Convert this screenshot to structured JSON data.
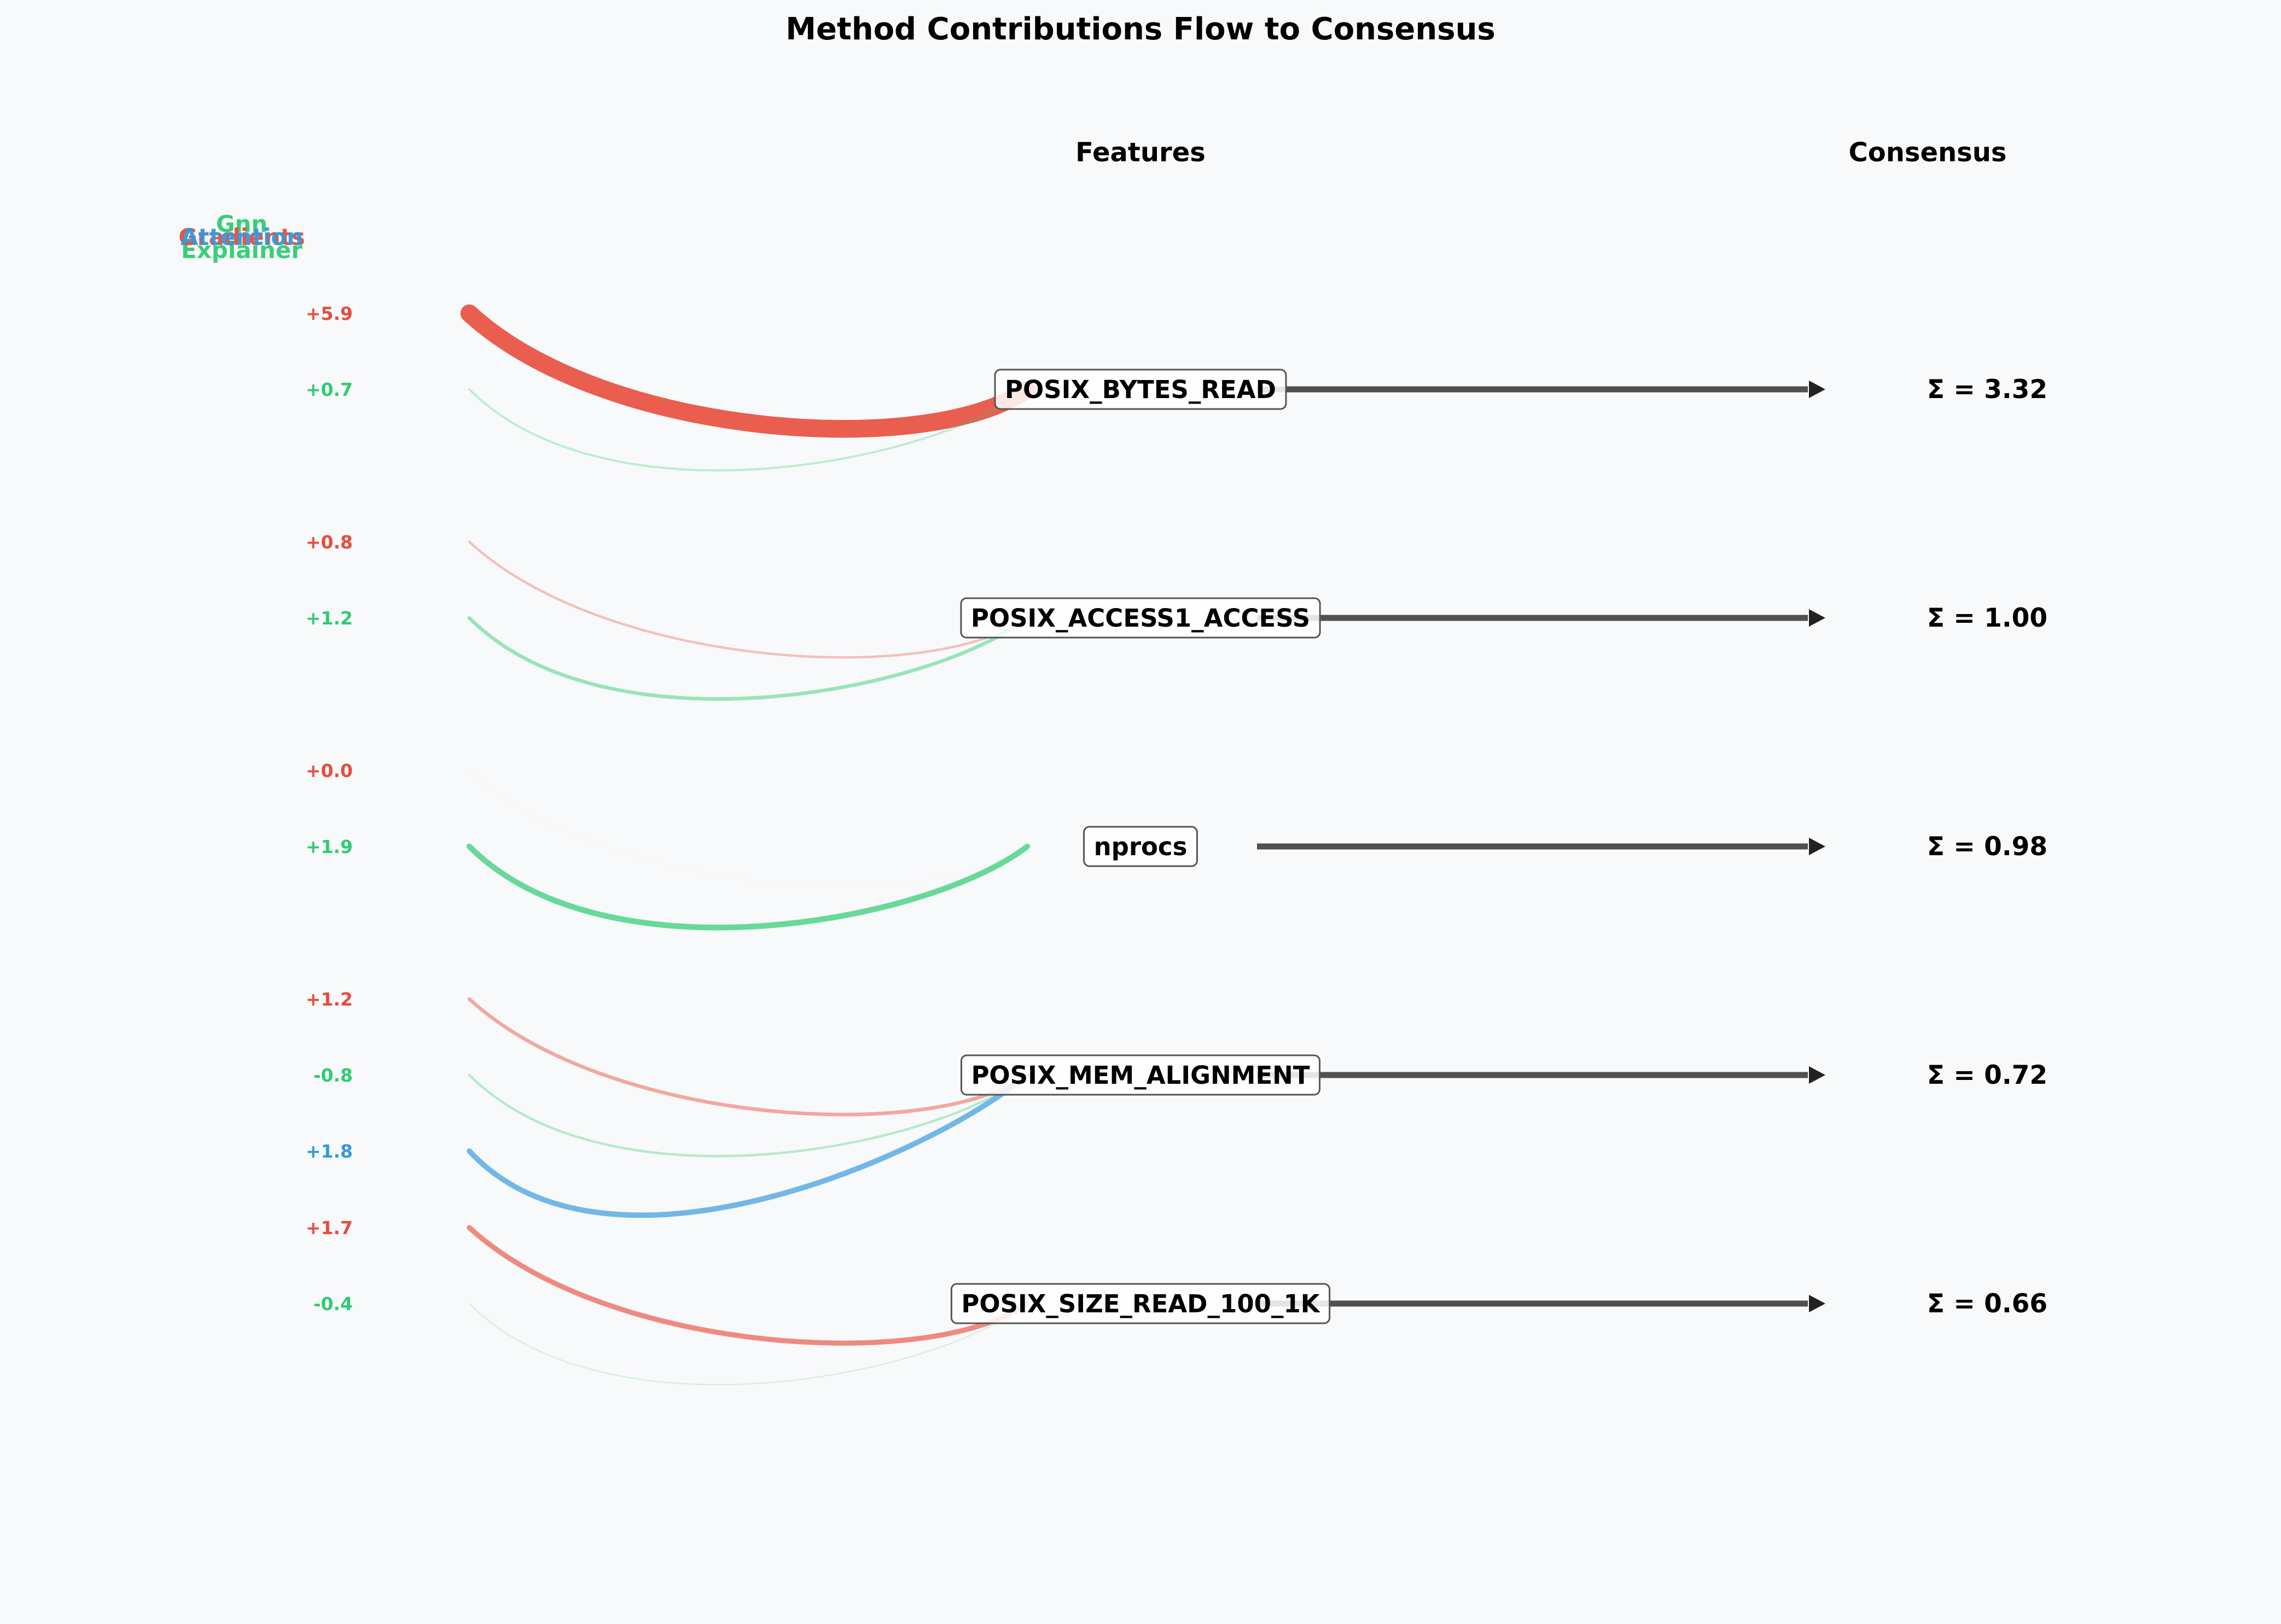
{
  "chart_data": {
    "type": "flow",
    "title": "Method Contributions Flow to Consensus",
    "column_headers": {
      "features": "Features",
      "consensus": "Consensus"
    },
    "methods": [
      {
        "name": "Gnn\nExplainer",
        "color": "#2ecc71"
      },
      {
        "name": "Gradients",
        "color": "#e74c3c"
      },
      {
        "name": "Attention",
        "color": "#3498db"
      }
    ],
    "features": [
      {
        "name": "POSIX_BYTES_READ",
        "consensus": "Σ = 3.32",
        "contributions": [
          {
            "label": "+5.9",
            "value": 5.9,
            "color": "#e74c3c"
          },
          {
            "label": "+0.7",
            "value": 0.7,
            "color": "#2ecc71"
          }
        ]
      },
      {
        "name": "POSIX_ACCESS1_ACCESS",
        "consensus": "Σ = 1.00",
        "contributions": [
          {
            "label": "+0.8",
            "value": 0.8,
            "color": "#e74c3c"
          },
          {
            "label": "+1.2",
            "value": 1.2,
            "color": "#2ecc71"
          }
        ]
      },
      {
        "name": "nprocs",
        "consensus": "Σ = 0.98",
        "contributions": [
          {
            "label": "+0.0",
            "value": 0.0,
            "color": "#e74c3c"
          },
          {
            "label": "+1.9",
            "value": 1.9,
            "color": "#2ecc71"
          }
        ]
      },
      {
        "name": "POSIX_MEM_ALIGNMENT",
        "consensus": "Σ = 0.72",
        "contributions": [
          {
            "label": "+1.2",
            "value": 1.2,
            "color": "#e74c3c"
          },
          {
            "label": "-0.8",
            "value": -0.8,
            "color": "#2ecc71"
          },
          {
            "label": "+1.8",
            "value": 1.8,
            "color": "#3498db"
          }
        ]
      },
      {
        "name": "POSIX_SIZE_READ_100_1K",
        "consensus": "Σ = 0.66",
        "contributions": [
          {
            "label": "+1.7",
            "value": 1.7,
            "color": "#e74c3c"
          },
          {
            "label": "-0.4",
            "value": -0.4,
            "color": "#2ecc71"
          }
        ]
      }
    ]
  }
}
